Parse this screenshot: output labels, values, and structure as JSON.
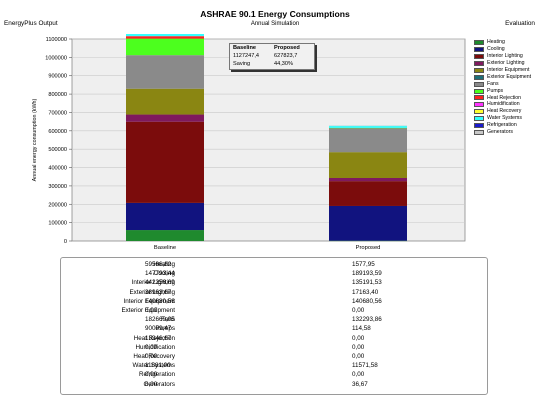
{
  "header": {
    "title": "ASHRAE 90.1 Energy Consumptions",
    "subtitle": "Annual Simulation",
    "left_label": "EnergyPlus Output",
    "right_label": "Evaluation"
  },
  "infobox": {
    "col_baseline": "Baseline",
    "col_proposed": "Proposed",
    "total_baseline": "1127247,4",
    "total_proposed": "627823,7",
    "saving_label": "Saving",
    "saving_value": "44,30%"
  },
  "legend": [
    {
      "label": "Heating",
      "color": "#1f8a2e"
    },
    {
      "label": "Cooling",
      "color": "#11137f"
    },
    {
      "label": "Interior Lighting",
      "color": "#7b0c0c"
    },
    {
      "label": "Exterior Lighting",
      "color": "#7f1a5e"
    },
    {
      "label": "Interior Equipment",
      "color": "#8a8612"
    },
    {
      "label": "Exterior Equipment",
      "color": "#1d6f78"
    },
    {
      "label": "Fans",
      "color": "#8a8a8a"
    },
    {
      "label": "Pumps",
      "color": "#4cff1e"
    },
    {
      "label": "Heat Rejection",
      "color": "#ff1f1f"
    },
    {
      "label": "Humidification",
      "color": "#ff33ff"
    },
    {
      "label": "Heat Recovery",
      "color": "#ffff33"
    },
    {
      "label": "Water Systems",
      "color": "#33ffff"
    },
    {
      "label": "Refrigeration",
      "color": "#1a1acc"
    },
    {
      "label": "Generators",
      "color": "#c8c8c8"
    }
  ],
  "table": {
    "rows": [
      {
        "label": "Heating",
        "baseline": "59586,82",
        "proposed": "1577,95"
      },
      {
        "label": "Cooling",
        "baseline": "147793,44",
        "proposed": "189193,59"
      },
      {
        "label": "Interior Lighting",
        "baseline": "442256,69",
        "proposed": "135191,53"
      },
      {
        "label": "Exterior Lighting",
        "baseline": "38963,67",
        "proposed": "17163,40"
      },
      {
        "label": "Interior Equipment",
        "baseline": "140680,56",
        "proposed": "140680,56"
      },
      {
        "label": "Exterior Equipment",
        "baseline": "0,00",
        "proposed": "0,00"
      },
      {
        "label": "Fans",
        "baseline": "182669,05",
        "proposed": "132293,86"
      },
      {
        "label": "Pumps",
        "baseline": "90069,47",
        "proposed": "114,58"
      },
      {
        "label": "Heat Rejection",
        "baseline": "13346,67",
        "proposed": "0,00"
      },
      {
        "label": "Humidification",
        "baseline": "0,00",
        "proposed": "0,00"
      },
      {
        "label": "Heat Recovery",
        "baseline": "0,00",
        "proposed": "0,00"
      },
      {
        "label": "Water Systems",
        "baseline": "11881,00",
        "proposed": "11571,58"
      },
      {
        "label": "Refrigeration",
        "baseline": "0,00",
        "proposed": "0,00"
      },
      {
        "label": "Generators",
        "baseline": "0,00",
        "proposed": "36,67"
      }
    ]
  },
  "chart_data": {
    "type": "bar",
    "stacked": true,
    "categories": [
      "Baseline",
      "Proposed"
    ],
    "ylabel": "Annual energy consumption (kWh)",
    "ylim": [
      0,
      1100000
    ],
    "yticks": [
      0,
      100000,
      200000,
      300000,
      400000,
      500000,
      600000,
      700000,
      800000,
      900000,
      1000000,
      1100000
    ],
    "ytick_labels": [
      "0",
      "100000",
      "200000",
      "300000",
      "400000",
      "500000",
      "600000",
      "700000",
      "800000",
      "900000",
      "1000000",
      "1100000"
    ],
    "grid": true,
    "legend_position": "right",
    "series": [
      {
        "name": "Heating",
        "values": [
          59586.82,
          1577.95
        ]
      },
      {
        "name": "Cooling",
        "values": [
          147793.44,
          189193.59
        ]
      },
      {
        "name": "Interior Lighting",
        "values": [
          442256.69,
          135191.53
        ]
      },
      {
        "name": "Exterior Lighting",
        "values": [
          38963.67,
          17163.4
        ]
      },
      {
        "name": "Interior Equipment",
        "values": [
          140680.56,
          140680.56
        ]
      },
      {
        "name": "Exterior Equipment",
        "values": [
          0,
          0
        ]
      },
      {
        "name": "Fans",
        "values": [
          182669.05,
          132293.86
        ]
      },
      {
        "name": "Pumps",
        "values": [
          90069.47,
          114.58
        ]
      },
      {
        "name": "Heat Rejection",
        "values": [
          13346.67,
          0
        ]
      },
      {
        "name": "Humidification",
        "values": [
          0,
          0
        ]
      },
      {
        "name": "Heat Recovery",
        "values": [
          0,
          0
        ]
      },
      {
        "name": "Water Systems",
        "values": [
          11881.0,
          11571.58
        ]
      },
      {
        "name": "Refrigeration",
        "values": [
          0,
          0
        ]
      },
      {
        "name": "Generators",
        "values": [
          0,
          36.67
        ]
      }
    ]
  }
}
